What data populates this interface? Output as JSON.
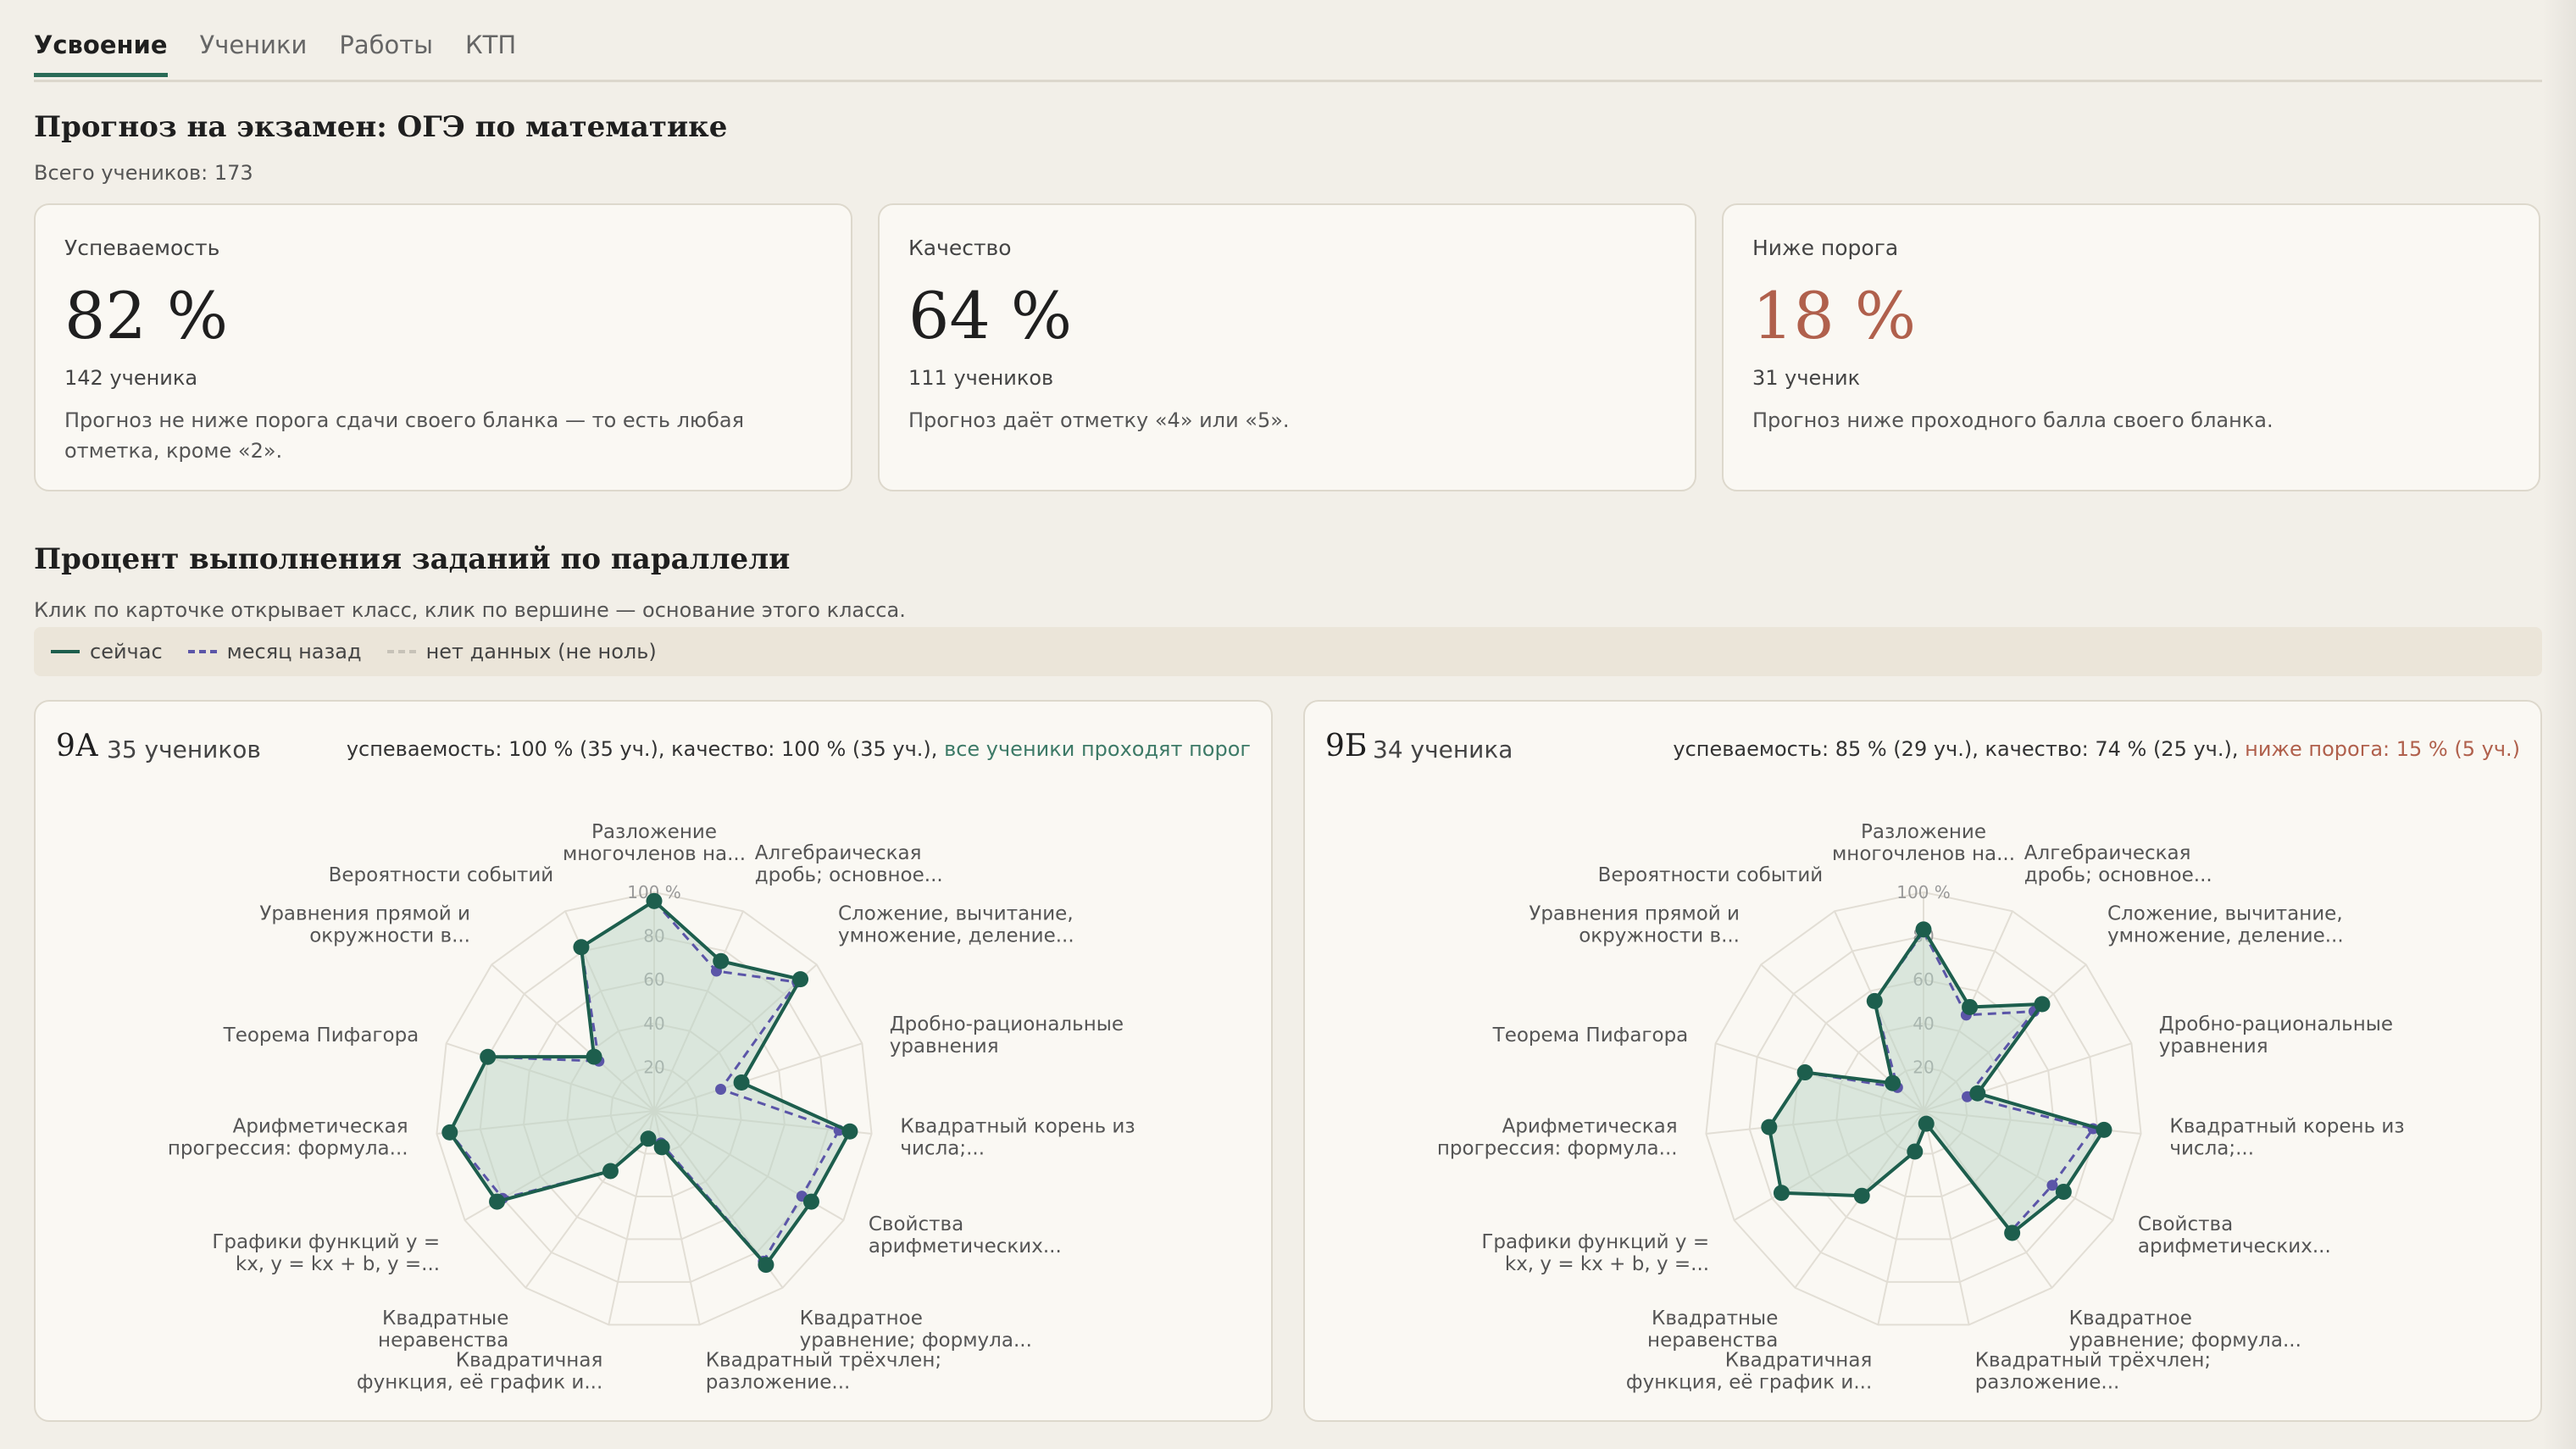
{
  "tabs": [
    "Усвоение",
    "Ученики",
    "Работы",
    "КТП"
  ],
  "title": "Прогноз на экзамен: ОГЭ по математике",
  "subtitle": "Всего учеников: 173",
  "cards": [
    {
      "label": "Успеваемость",
      "value": "82 %",
      "count": "142 ученика",
      "desc": "Прогноз не ниже порога сдачи своего бланка — то есть любая отметка, кроме «2»."
    },
    {
      "label": "Качество",
      "value": "64 %",
      "count": "111 учеников",
      "desc": "Прогноз даёт отметку «4» или «5»."
    },
    {
      "label": "Ниже порога",
      "value": "18 %",
      "count": "31 ученик",
      "desc": "Прогноз ниже проходного балла своего бланка."
    }
  ],
  "section_title": "Процент выполнения заданий по параллели",
  "hint": "Клик по карточке открывает класс, клик по вершине — основание этого класса.",
  "legend": {
    "now": "сейчас",
    "month": "месяц назад",
    "none": "нет данных (не ноль)"
  },
  "colors": {
    "now": "#1d5e4d",
    "month": "#5b55a8",
    "fill": "#b9d3c6",
    "warn": "#b0604c",
    "ok": "#3d7a67"
  },
  "classes": [
    {
      "name": "9А",
      "count": "35 учеников",
      "stats": "успеваемость: 100 % (35 уч.), качество: 100 % (35 уч.),",
      "status": "все ученики проходят порог",
      "status_kind": "ok"
    },
    {
      "name": "9Б",
      "count": "34 ученика",
      "stats": "успеваемость: 85 % (29 уч.), качество: 74 % (25 уч.),",
      "status": "ниже порога: 15 % (5 уч.)",
      "status_kind": "bad"
    }
  ],
  "chart_data": [
    {
      "type": "radar",
      "class": "9А",
      "scale_max": 100,
      "ticks": [
        "20",
        "40",
        "60",
        "80",
        "100 %"
      ],
      "axes": [
        [
          "Разложение",
          "многочленов на..."
        ],
        [
          "Алгебраическая",
          "дробь; основное..."
        ],
        [
          "Сложение, вычитание,",
          "умножение, деление..."
        ],
        [
          "Дробно-рациональные",
          "уравнения"
        ],
        [
          "Квадратный корень из",
          "числа;..."
        ],
        [
          "Свойства",
          "арифметических..."
        ],
        [
          "Квадратное",
          "уравнение; формула..."
        ],
        [
          "Квадратный трёхчлен;",
          "разложение..."
        ],
        [
          "Квадратичная",
          "функция, её график и..."
        ],
        [
          "Квадратные",
          "неравенства"
        ],
        [
          "Графики функций y =",
          "kx, y = kx + b, y =..."
        ],
        [
          "Арифметическая",
          "прогрессия: формула..."
        ],
        [
          "Теорема Пифагора"
        ],
        [
          "Уравнения прямой и",
          "окружности в..."
        ],
        [
          "Вероятности событий"
        ]
      ],
      "series": [
        {
          "name": "сейчас",
          "values": [
            96,
            75,
            90,
            42,
            90,
            83,
            87,
            17,
            13,
            34,
            83,
            94,
            80,
            37,
            82
          ]
        },
        {
          "name": "месяц назад",
          "values": [
            96,
            70,
            88,
            32,
            85,
            78,
            85,
            15,
            13,
            34,
            80,
            94,
            80,
            34,
            82
          ]
        }
      ]
    },
    {
      "type": "radar",
      "class": "9Б",
      "scale_max": 100,
      "ticks": [
        "20",
        "40",
        "60",
        "80",
        "100 %"
      ],
      "axes": [
        [
          "Разложение",
          "многочленов на..."
        ],
        [
          "Алгебраическая",
          "дробь; основное..."
        ],
        [
          "Сложение, вычитание,",
          "умножение, деление..."
        ],
        [
          "Дробно-рациональные",
          "уравнения"
        ],
        [
          "Квадратный корень из",
          "числа;..."
        ],
        [
          "Свойства",
          "арифметических..."
        ],
        [
          "Квадратное",
          "уравнение; формула..."
        ],
        [
          "Квадратный трёхчлен;",
          "разложение..."
        ],
        [
          "Квадратичная",
          "функция, её график и..."
        ],
        [
          "Квадратные",
          "неравенства"
        ],
        [
          "Графики функций y =",
          "kx, y = kx + b, y =..."
        ],
        [
          "Арифметическая",
          "прогрессия: формула..."
        ],
        [
          "Теорема Пифагора"
        ],
        [
          "Уравнения прямой и",
          "окружности в..."
        ],
        [
          "Вероятности событий"
        ]
      ],
      "series": [
        {
          "name": "сейчас",
          "values": [
            83,
            52,
            73,
            26,
            83,
            74,
            69,
            6,
            19,
            48,
            75,
            71,
            57,
            19,
            55
          ]
        },
        {
          "name": "месяц назад",
          "values": [
            82,
            48,
            68,
            21,
            78,
            68,
            68,
            6,
            19,
            48,
            75,
            71,
            57,
            16,
            55
          ]
        }
      ]
    }
  ]
}
